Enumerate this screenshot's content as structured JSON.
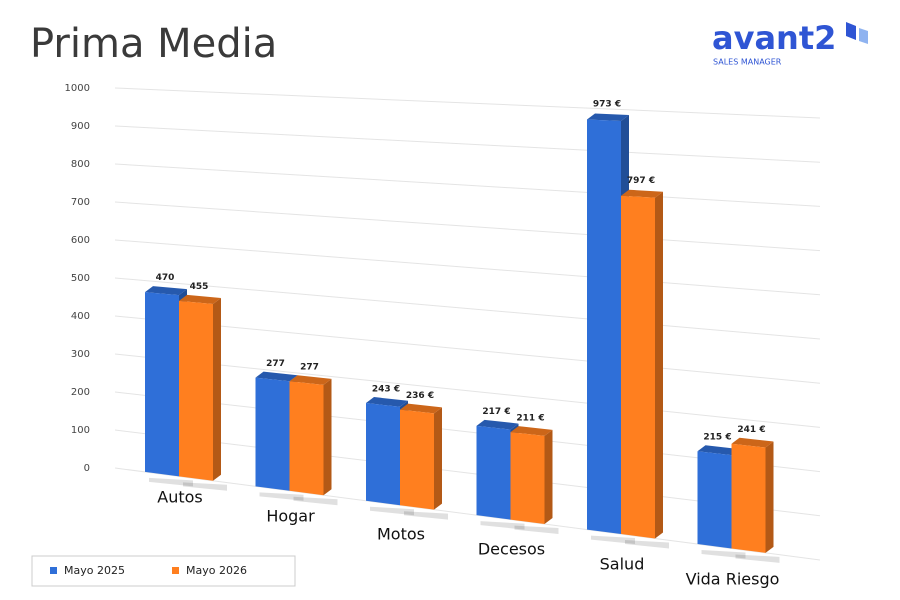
{
  "logo": {
    "name": "avant2",
    "tagline": "SALES MANAGER"
  },
  "chart_data": {
    "type": "bar",
    "title": "Prima Media",
    "categories": [
      "Autos",
      "Hogar",
      "Motos",
      "Decesos",
      "Salud",
      "Vida Riesgo"
    ],
    "series": [
      {
        "name": "Mayo 2025",
        "color": "#2f6fd8",
        "values": [
          470,
          277,
          243,
          217,
          973,
          215
        ],
        "value_labels": [
          "470",
          "277",
          "243 €",
          "217 €",
          "973 €",
          "215 €"
        ]
      },
      {
        "name": "Mayo 2026",
        "color": "#ff7f1f",
        "values": [
          455,
          277,
          236,
          211,
          797,
          241
        ],
        "value_labels": [
          "455",
          "277",
          "236 €",
          "211 €",
          "797 €",
          "241 €"
        ]
      }
    ],
    "ylim": [
      0,
      1000
    ],
    "yticks": [
      0,
      100,
      200,
      300,
      400,
      500,
      600,
      700,
      800,
      900,
      1000
    ],
    "grid": true,
    "legend": "bottom-left"
  }
}
